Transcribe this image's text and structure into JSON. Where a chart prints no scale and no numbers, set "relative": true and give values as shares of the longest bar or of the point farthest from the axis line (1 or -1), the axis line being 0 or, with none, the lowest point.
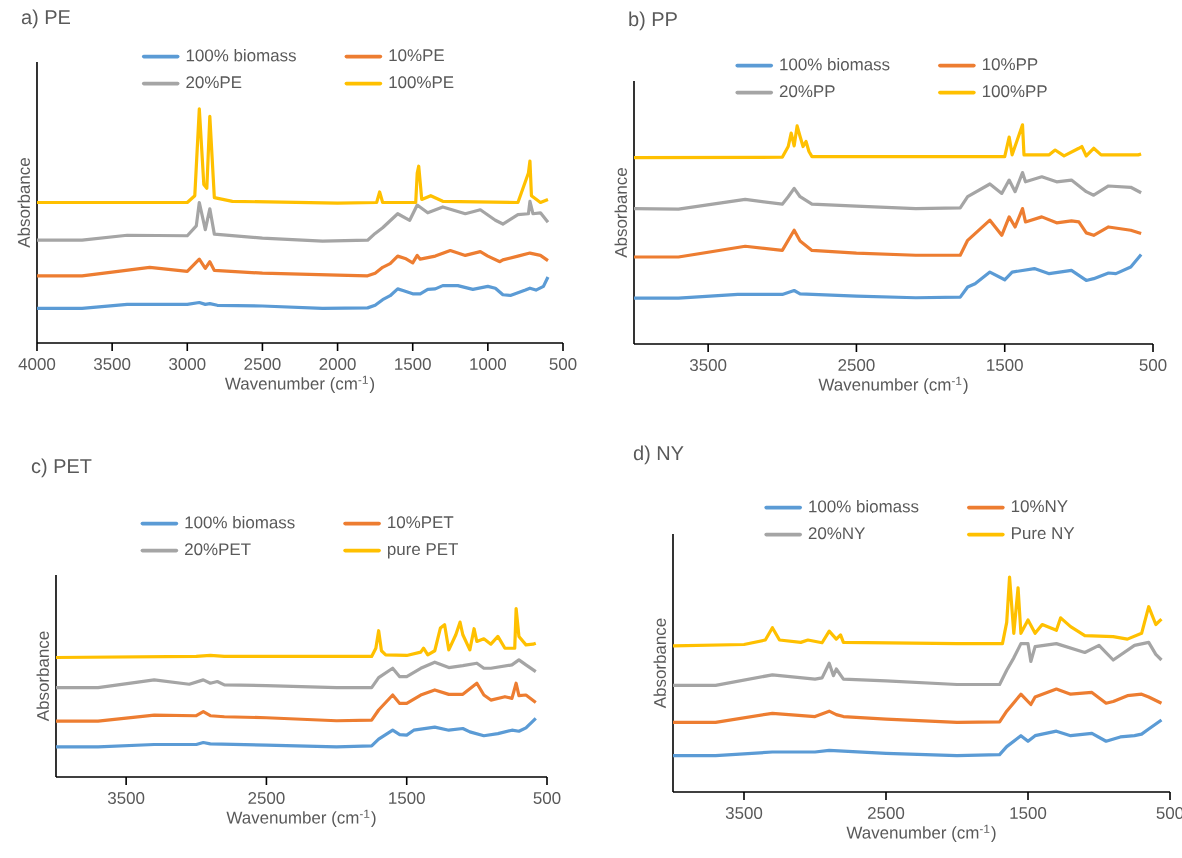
{
  "chart_data": [
    {
      "type": "line",
      "title": "a) PE",
      "xlabel": "Wavenumber (cm$^{-1}$)",
      "ylabel": "Absorbance",
      "xlim": [
        4000,
        500
      ],
      "xticks": [
        4000,
        3500,
        3000,
        2500,
        2000,
        1500,
        1000,
        500
      ],
      "relative": true,
      "legend": "top",
      "series": [
        {
          "name": "100% biomass",
          "color": "#5b9bd5",
          "x": [
            4000,
            3700,
            3400,
            3000,
            2920,
            2880,
            2850,
            2800,
            2500,
            2100,
            1800,
            1750,
            1700,
            1650,
            1600,
            1560,
            1500,
            1450,
            1400,
            1350,
            1300,
            1200,
            1100,
            1000,
            950,
            900,
            850,
            750,
            720,
            680,
            630,
            600
          ],
          "values": [
            0.148,
            0.148,
            0.165,
            0.165,
            0.173,
            0.165,
            0.168,
            0.161,
            0.158,
            0.148,
            0.15,
            0.161,
            0.185,
            0.202,
            0.231,
            0.223,
            0.21,
            0.21,
            0.229,
            0.231,
            0.245,
            0.245,
            0.229,
            0.242,
            0.234,
            0.206,
            0.203,
            0.226,
            0.234,
            0.226,
            0.242,
            0.282
          ]
        },
        {
          "name": "10%PE",
          "color": "#ed7d31",
          "x": [
            4000,
            3700,
            3500,
            3250,
            3000,
            2920,
            2880,
            2850,
            2820,
            2500,
            2000,
            1800,
            1750,
            1700,
            1650,
            1600,
            1550,
            1500,
            1470,
            1450,
            1350,
            1250,
            1150,
            1050,
            1000,
            920,
            900,
            800,
            720,
            650,
            600
          ],
          "values": [
            0.287,
            0.287,
            0.303,
            0.323,
            0.306,
            0.358,
            0.319,
            0.347,
            0.31,
            0.298,
            0.29,
            0.287,
            0.298,
            0.323,
            0.339,
            0.371,
            0.361,
            0.342,
            0.374,
            0.358,
            0.371,
            0.395,
            0.374,
            0.39,
            0.371,
            0.347,
            0.355,
            0.371,
            0.384,
            0.374,
            0.352
          ]
        },
        {
          "name": "20%PE",
          "color": "#a5a5a5",
          "x": [
            4000,
            3700,
            3400,
            3000,
            2940,
            2920,
            2880,
            2850,
            2820,
            2500,
            2100,
            1800,
            1750,
            1700,
            1600,
            1520,
            1470,
            1400,
            1300,
            1150,
            1050,
            950,
            900,
            800,
            730,
            720,
            700,
            650,
            600
          ],
          "values": [
            0.439,
            0.439,
            0.46,
            0.458,
            0.5,
            0.6,
            0.484,
            0.573,
            0.465,
            0.448,
            0.435,
            0.439,
            0.468,
            0.492,
            0.552,
            0.524,
            0.589,
            0.556,
            0.581,
            0.552,
            0.569,
            0.524,
            0.508,
            0.548,
            0.552,
            0.605,
            0.552,
            0.556,
            0.516
          ]
        },
        {
          "name": "100%PE",
          "color": "#ffc000",
          "x": [
            4000,
            3000,
            2950,
            2920,
            2890,
            2870,
            2850,
            2820,
            2700,
            2000,
            1740,
            1720,
            1700,
            1480,
            1470,
            1460,
            1440,
            1380,
            1300,
            800,
            730,
            720,
            710,
            650,
            600
          ],
          "values": [
            0.6,
            0.6,
            0.629,
            1,
            0.677,
            0.661,
            0.968,
            0.621,
            0.605,
            0.597,
            0.6,
            0.645,
            0.6,
            0.6,
            0.726,
            0.755,
            0.613,
            0.629,
            0.605,
            0.6,
            0.726,
            0.777,
            0.629,
            0.6,
            0.613
          ]
        }
      ]
    },
    {
      "type": "line",
      "title": "b) PP",
      "xlabel": "Wavenumber (cm$^{-1}$)",
      "ylabel": "Absorbance",
      "xlim": [
        4000,
        500
      ],
      "xticks": [
        3500,
        2500,
        1500,
        500
      ],
      "relative": true,
      "legend": "top",
      "series": [
        {
          "name": "100% biomass",
          "color": "#5b9bd5",
          "x": [
            4000,
            3700,
            3300,
            3000,
            2920,
            2880,
            2500,
            2100,
            1800,
            1750,
            1700,
            1600,
            1500,
            1450,
            1300,
            1200,
            1050,
            950,
            900,
            800,
            750,
            650,
            580
          ],
          "values": [
            0.209,
            0.209,
            0.226,
            0.226,
            0.244,
            0.229,
            0.218,
            0.211,
            0.214,
            0.26,
            0.275,
            0.328,
            0.293,
            0.328,
            0.344,
            0.321,
            0.336,
            0.29,
            0.298,
            0.324,
            0.321,
            0.351,
            0.408
          ]
        },
        {
          "name": "10%PP",
          "color": "#ed7d31",
          "x": [
            4000,
            3700,
            3250,
            3000,
            2960,
            2920,
            2880,
            2800,
            2500,
            2100,
            1800,
            1750,
            1600,
            1520,
            1470,
            1430,
            1380,
            1360,
            1250,
            1150,
            1050,
            1000,
            950,
            900,
            800,
            650,
            580
          ],
          "values": [
            0.397,
            0.397,
            0.446,
            0.427,
            0.473,
            0.519,
            0.47,
            0.427,
            0.415,
            0.405,
            0.405,
            0.473,
            0.565,
            0.496,
            0.58,
            0.534,
            0.618,
            0.557,
            0.58,
            0.553,
            0.562,
            0.557,
            0.507,
            0.496,
            0.534,
            0.519,
            0.504
          ]
        },
        {
          "name": "20%PP",
          "color": "#a5a5a5",
          "x": [
            4000,
            3700,
            3250,
            3000,
            2960,
            2920,
            2880,
            2800,
            2500,
            2100,
            1800,
            1750,
            1600,
            1520,
            1470,
            1430,
            1380,
            1360,
            1250,
            1150,
            1050,
            950,
            900,
            800,
            650,
            580
          ],
          "values": [
            0.618,
            0.615,
            0.66,
            0.638,
            0.672,
            0.71,
            0.672,
            0.638,
            0.629,
            0.618,
            0.621,
            0.672,
            0.73,
            0.687,
            0.748,
            0.695,
            0.782,
            0.74,
            0.763,
            0.74,
            0.748,
            0.695,
            0.679,
            0.721,
            0.715,
            0.69
          ]
        },
        {
          "name": "100%PP",
          "color": "#ffc000",
          "x": [
            4000,
            3000,
            2960,
            2940,
            2920,
            2900,
            2880,
            2860,
            2840,
            2820,
            2800,
            1500,
            1470,
            1450,
            1380,
            1370,
            1200,
            1160,
            1100,
            1000,
            980,
            950,
            900,
            850,
            600,
            580
          ],
          "values": [
            0.85,
            0.852,
            0.901,
            0.962,
            0.904,
            0.995,
            0.947,
            0.901,
            0.924,
            0.878,
            0.855,
            0.855,
            0.944,
            0.863,
            1,
            0.863,
            0.863,
            0.885,
            0.858,
            0.893,
            0.901,
            0.858,
            0.893,
            0.863,
            0.863,
            0.867
          ]
        }
      ]
    },
    {
      "type": "line",
      "title": "c) PET",
      "xlabel": "Wavenumber (cm$^{-1}$)",
      "ylabel": "Absorbance",
      "xlim": [
        4000,
        500
      ],
      "xticks": [
        3500,
        2500,
        1500,
        500
      ],
      "relative": true,
      "legend": "top",
      "series": [
        {
          "name": "100% biomass",
          "color": "#5b9bd5",
          "x": [
            4000,
            3700,
            3300,
            3000,
            2950,
            2900,
            2500,
            2000,
            1750,
            1700,
            1600,
            1550,
            1500,
            1450,
            1300,
            1200,
            1100,
            1050,
            950,
            850,
            750,
            700,
            650,
            580
          ],
          "values": [
            0.179,
            0.179,
            0.193,
            0.193,
            0.205,
            0.197,
            0.189,
            0.179,
            0.185,
            0.225,
            0.278,
            0.252,
            0.249,
            0.278,
            0.296,
            0.278,
            0.288,
            0.268,
            0.245,
            0.258,
            0.278,
            0.272,
            0.292,
            0.348
          ]
        },
        {
          "name": "10%PET",
          "color": "#ed7d31",
          "x": [
            4000,
            3700,
            3300,
            3000,
            2950,
            2900,
            2800,
            2500,
            2000,
            1750,
            1700,
            1600,
            1550,
            1500,
            1400,
            1300,
            1200,
            1100,
            1000,
            950,
            900,
            800,
            750,
            720,
            700,
            650,
            580
          ],
          "values": [
            0.332,
            0.332,
            0.368,
            0.364,
            0.388,
            0.364,
            0.358,
            0.352,
            0.334,
            0.338,
            0.398,
            0.487,
            0.437,
            0.437,
            0.487,
            0.517,
            0.491,
            0.491,
            0.557,
            0.487,
            0.457,
            0.477,
            0.467,
            0.557,
            0.483,
            0.487,
            0.443
          ]
        },
        {
          "name": "20%PET",
          "color": "#a5a5a5",
          "x": [
            4000,
            3700,
            3300,
            3050,
            2950,
            2900,
            2850,
            2800,
            2500,
            2000,
            1750,
            1700,
            1600,
            1550,
            1500,
            1400,
            1300,
            1200,
            1100,
            1000,
            950,
            900,
            750,
            700,
            650,
            580
          ],
          "values": [
            0.531,
            0.531,
            0.577,
            0.551,
            0.577,
            0.557,
            0.567,
            0.547,
            0.543,
            0.531,
            0.531,
            0.59,
            0.646,
            0.596,
            0.596,
            0.646,
            0.682,
            0.65,
            0.662,
            0.676,
            0.646,
            0.646,
            0.666,
            0.696,
            0.666,
            0.626
          ]
        },
        {
          "name": "pure PET",
          "color": "#ffc000",
          "x": [
            4000,
            3000,
            2900,
            2800,
            1750,
            1720,
            1700,
            1680,
            1650,
            1500,
            1400,
            1380,
            1350,
            1300,
            1260,
            1230,
            1200,
            1150,
            1120,
            1100,
            1050,
            1020,
            1000,
            950,
            900,
            850,
            800,
            730,
            720,
            700,
            650,
            600,
            580
          ],
          "values": [
            0.71,
            0.716,
            0.722,
            0.716,
            0.716,
            0.765,
            0.869,
            0.75,
            0.726,
            0.722,
            0.742,
            0.765,
            0.726,
            0.75,
            0.885,
            0.905,
            0.755,
            0.845,
            0.92,
            0.845,
            0.755,
            0.881,
            0.805,
            0.821,
            0.789,
            0.835,
            0.765,
            0.765,
            1,
            0.835,
            0.785,
            0.789,
            0.795
          ]
        }
      ]
    },
    {
      "type": "line",
      "title": "d) NY",
      "xlabel": "Wavenumber (cm$^{-1}$)",
      "ylabel": "Absorbance",
      "xlim": [
        4000,
        500
      ],
      "xticks": [
        3500,
        2500,
        1500,
        500
      ],
      "relative": true,
      "legend": "top",
      "series": [
        {
          "name": "100% biomass",
          "color": "#5b9bd5",
          "x": [
            4000,
            3700,
            3300,
            3000,
            2900,
            2500,
            2000,
            1700,
            1650,
            1550,
            1500,
            1450,
            1300,
            1200,
            1050,
            950,
            850,
            750,
            700,
            650,
            560
          ],
          "values": [
            0.169,
            0.169,
            0.186,
            0.186,
            0.194,
            0.18,
            0.169,
            0.174,
            0.211,
            0.262,
            0.236,
            0.262,
            0.283,
            0.262,
            0.273,
            0.236,
            0.256,
            0.262,
            0.269,
            0.293,
            0.335
          ]
        },
        {
          "name": "10%NY",
          "color": "#ed7d31",
          "x": [
            4000,
            3700,
            3300,
            3000,
            2900,
            2850,
            2800,
            2500,
            2000,
            1700,
            1650,
            1550,
            1480,
            1450,
            1300,
            1200,
            1050,
            950,
            900,
            800,
            700,
            650,
            560
          ],
          "values": [
            0.324,
            0.324,
            0.366,
            0.351,
            0.376,
            0.36,
            0.351,
            0.339,
            0.324,
            0.326,
            0.376,
            0.455,
            0.407,
            0.442,
            0.479,
            0.455,
            0.463,
            0.413,
            0.421,
            0.448,
            0.455,
            0.442,
            0.413
          ]
        },
        {
          "name": "20%NY",
          "color": "#a5a5a5",
          "x": [
            4000,
            3700,
            3300,
            3000,
            2950,
            2900,
            2870,
            2850,
            2800,
            2500,
            2000,
            1700,
            1650,
            1600,
            1550,
            1500,
            1480,
            1450,
            1300,
            1100,
            1000,
            900,
            750,
            650,
            600,
            560
          ],
          "values": [
            0.496,
            0.496,
            0.545,
            0.525,
            0.531,
            0.599,
            0.541,
            0.572,
            0.525,
            0.517,
            0.5,
            0.5,
            0.566,
            0.624,
            0.69,
            0.69,
            0.607,
            0.676,
            0.69,
            0.649,
            0.682,
            0.614,
            0.682,
            0.696,
            0.64,
            0.614
          ]
        },
        {
          "name": "Pure NY",
          "color": "#ffc000",
          "x": [
            4000,
            3500,
            3350,
            3300,
            3250,
            3100,
            3050,
            2950,
            2900,
            2850,
            2820,
            2800,
            2000,
            1680,
            1650,
            1630,
            1600,
            1570,
            1550,
            1500,
            1450,
            1400,
            1300,
            1270,
            1200,
            1100,
            900,
            800,
            700,
            650,
            600,
            560
          ],
          "values": [
            0.68,
            0.686,
            0.707,
            0.764,
            0.707,
            0.696,
            0.707,
            0.694,
            0.748,
            0.711,
            0.731,
            0.696,
            0.69,
            0.69,
            0.789,
            1,
            0.738,
            0.95,
            0.738,
            0.8,
            0.738,
            0.779,
            0.752,
            0.81,
            0.769,
            0.727,
            0.723,
            0.711,
            0.738,
            0.862,
            0.779,
            0.804
          ]
        }
      ]
    }
  ]
}
